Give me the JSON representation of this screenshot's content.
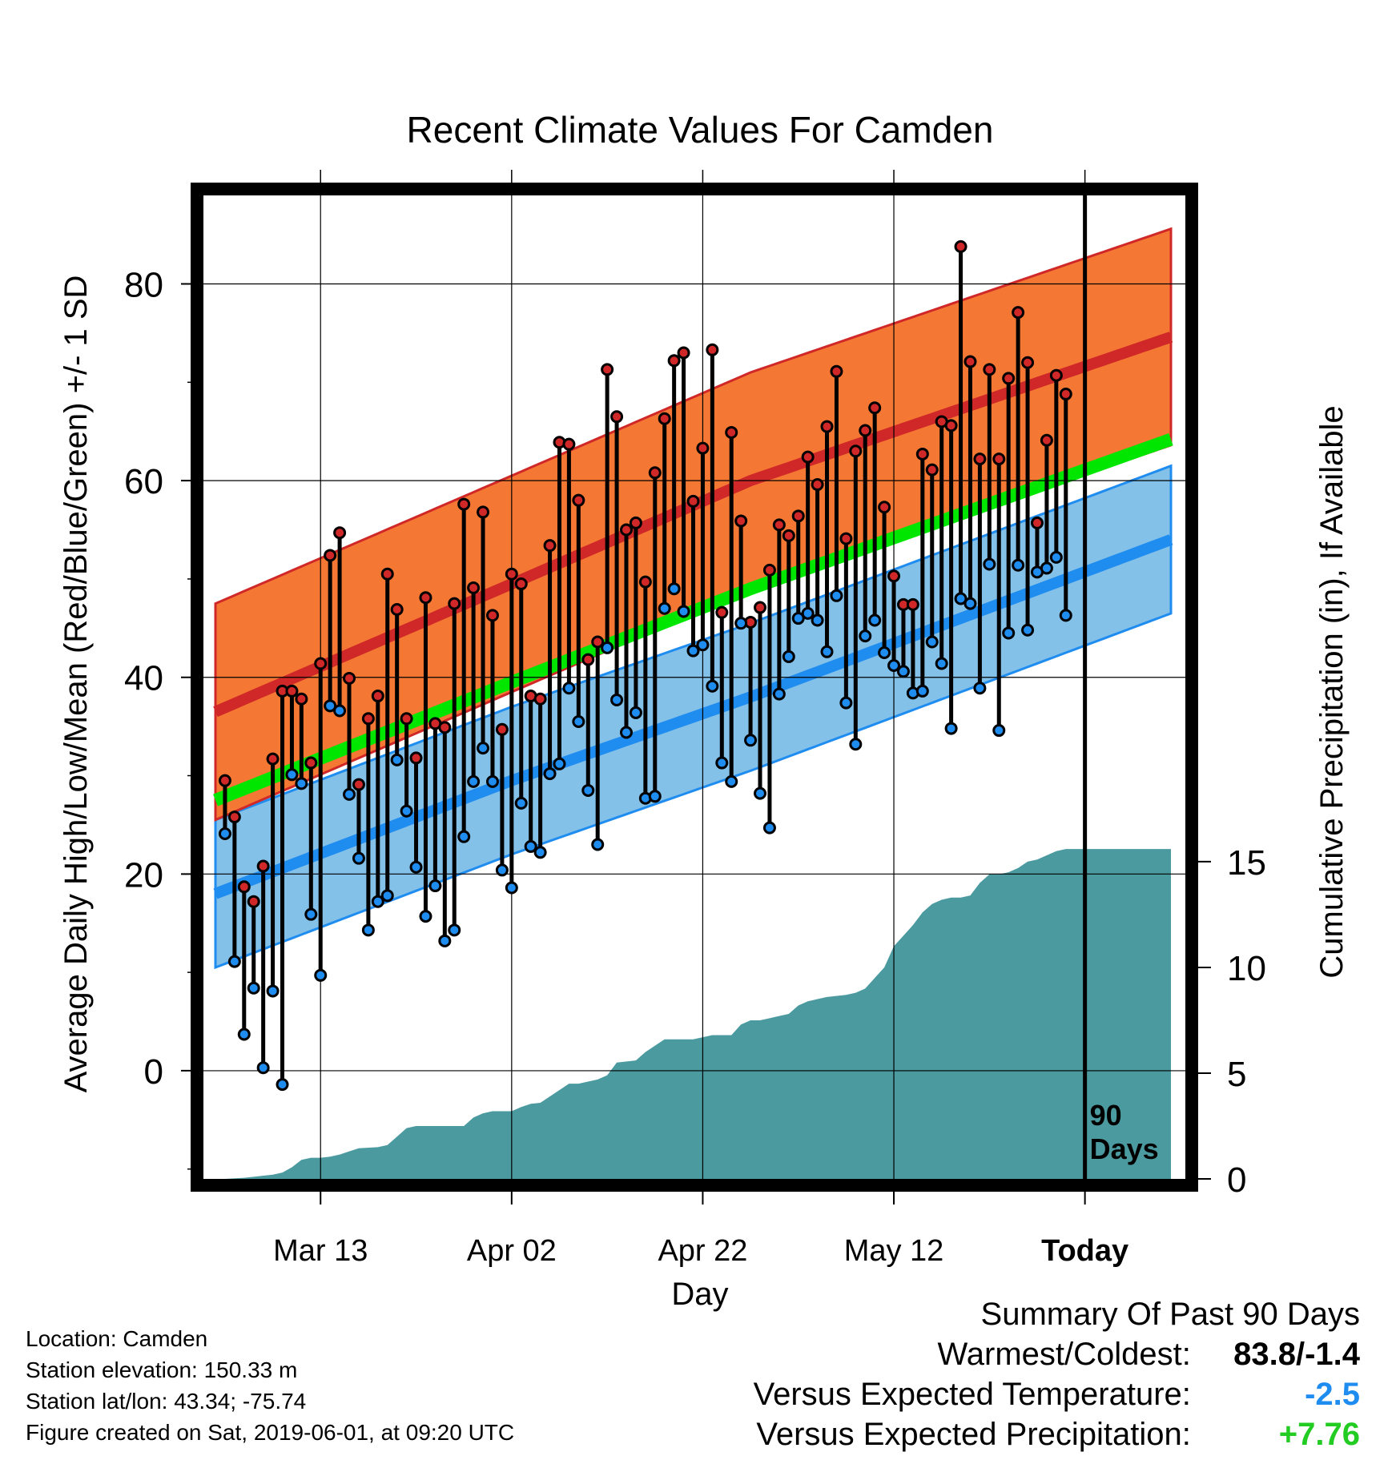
{
  "chart_data": {
    "type": "line",
    "title": "Recent Climate Values For Camden",
    "xlabel": "Day",
    "ylabel_left": "Average Daily High/Low/Mean (Red/Blue/Green) +/- 1 SD",
    "ylabel_right": "Cumulative Precipitation (in), If Available",
    "x_tick_labels": [
      "Mar 13",
      "Apr 02",
      "Apr 22",
      "May 12",
      "Today"
    ],
    "x_tick_days": [
      10,
      30,
      50,
      70,
      90
    ],
    "x_range_days": [
      -1,
      99
    ],
    "y_left_range": [
      -11,
      89
    ],
    "y_left_ticks": [
      0,
      20,
      40,
      60,
      80
    ],
    "y_right_range": [
      0,
      15.3
    ],
    "y_right_ticks": [
      0,
      5,
      10,
      15
    ],
    "today_marker_label": "90 Days",
    "grid": true,
    "colors": {
      "high_band": "#F47833",
      "high_line": "#D02828",
      "low_band": "#84C1E8",
      "low_line": "#1F8CF0",
      "mean_line": "#00E600",
      "precip_fill": "#4A9AA0",
      "frame": "#000000"
    },
    "normal_high": {
      "x": [
        -1,
        30,
        55,
        99
      ],
      "mean": [
        36.5,
        49.5,
        60,
        74.6
      ],
      "sd": 11
    },
    "normal_low": {
      "x": [
        -1,
        30,
        55,
        99
      ],
      "mean": [
        18,
        29.5,
        38,
        54
      ],
      "sd": 7.5
    },
    "normal_mean": {
      "x": [
        -1,
        30,
        55,
        99
      ],
      "values": [
        27.5,
        39.5,
        49,
        64.2
      ]
    },
    "daily_high": [
      29.5,
      25.8,
      18.7,
      17.2,
      20.8,
      31.7,
      38.6,
      38.6,
      37.8,
      31.3,
      41.4,
      52.4,
      54.7,
      39.9,
      29.1,
      35.8,
      38.1,
      50.5,
      46.9,
      35.8,
      31.8,
      48.1,
      35.3,
      34.9,
      47.5,
      57.6,
      49.1,
      56.8,
      46.3,
      34.7,
      50.5,
      49.5,
      38.1,
      37.8,
      53.4,
      63.9,
      63.7,
      58.0,
      41.8,
      43.6,
      71.3,
      66.5,
      55.0,
      55.7,
      49.7,
      60.8,
      66.3,
      72.2,
      73.0,
      57.9,
      63.3,
      73.3,
      46.6,
      64.9,
      55.9,
      45.6,
      47.1,
      50.9,
      55.5,
      54.4,
      56.4,
      62.4,
      59.6,
      65.5,
      71.1,
      54.1,
      63.0,
      65.1,
      67.4,
      57.3,
      50.3,
      47.4,
      47.4,
      62.7,
      61.1,
      66.0,
      65.6,
      83.8,
      72.1,
      62.2,
      71.3,
      62.2,
      70.4,
      77.1,
      72.0,
      55.7,
      64.1,
      70.7,
      68.8
    ],
    "daily_low": [
      24.1,
      11.1,
      3.7,
      8.4,
      0.3,
      8.1,
      -1.4,
      30.1,
      29.2,
      15.9,
      9.7,
      37.1,
      36.6,
      28.1,
      21.6,
      14.3,
      17.2,
      17.8,
      31.6,
      26.4,
      20.7,
      15.7,
      18.8,
      13.2,
      14.3,
      23.8,
      29.4,
      32.8,
      29.4,
      20.4,
      18.6,
      27.2,
      22.8,
      22.2,
      30.2,
      31.2,
      38.9,
      35.5,
      28.5,
      23.0,
      43.0,
      37.7,
      34.4,
      36.4,
      27.7,
      27.9,
      47.0,
      49.0,
      46.7,
      42.7,
      43.3,
      39.1,
      31.3,
      29.4,
      45.5,
      33.6,
      28.2,
      24.7,
      38.3,
      42.1,
      46.0,
      46.5,
      45.8,
      42.6,
      48.3,
      37.4,
      33.2,
      44.2,
      45.8,
      42.5,
      41.2,
      40.6,
      38.4,
      38.6,
      43.6,
      41.4,
      34.8,
      48.0,
      47.5,
      38.9,
      51.5,
      34.6,
      44.5,
      51.4,
      44.8,
      50.7,
      51.1,
      52.2,
      46.3
    ],
    "precip_cumulative": {
      "x": [
        -1,
        0,
        2,
        3,
        4,
        5,
        6,
        7,
        8,
        9,
        10,
        11,
        12,
        13,
        14,
        16,
        17,
        18,
        19,
        20,
        25,
        26,
        27,
        28,
        30,
        31,
        32,
        33,
        35,
        36,
        37,
        38,
        39,
        40,
        41,
        43,
        44,
        46,
        47,
        49,
        50,
        51,
        53,
        54,
        55,
        56,
        57,
        58,
        59,
        60,
        61,
        62,
        63,
        65,
        66,
        67,
        68,
        69,
        70,
        71,
        72,
        73,
        74,
        75,
        76,
        77,
        78,
        79,
        80,
        81,
        82,
        83,
        84,
        85,
        86,
        87,
        88,
        99
      ],
      "values": [
        0,
        0,
        0.05,
        0.1,
        0.15,
        0.2,
        0.3,
        0.55,
        0.9,
        1.0,
        1.0,
        1.05,
        1.15,
        1.3,
        1.45,
        1.5,
        1.6,
        2.0,
        2.4,
        2.5,
        2.5,
        2.9,
        3.1,
        3.2,
        3.2,
        3.4,
        3.55,
        3.6,
        4.2,
        4.5,
        4.5,
        4.6,
        4.7,
        4.9,
        5.5,
        5.6,
        6.0,
        6.6,
        6.6,
        6.6,
        6.7,
        6.8,
        6.8,
        7.3,
        7.5,
        7.5,
        7.6,
        7.7,
        7.8,
        8.2,
        8.4,
        8.5,
        8.6,
        8.7,
        8.8,
        9.0,
        9.5,
        10.0,
        11.0,
        11.5,
        12.0,
        12.6,
        13.0,
        13.2,
        13.3,
        13.3,
        13.4,
        14.0,
        14.4,
        14.4,
        14.5,
        14.7,
        15.0,
        15.1,
        15.3,
        15.5,
        15.6,
        15.6
      ]
    }
  },
  "info": {
    "location": "Location: Camden",
    "elevation": "Station elevation: 150.33 m",
    "latlon": "Station lat/lon: 43.34; -75.74",
    "created": "Figure created on Sat, 2019-06-01, at 09:20 UTC"
  },
  "summary": {
    "heading": "Summary Of Past 90 Days",
    "warmest_coldest_label": "Warmest/Coldest:",
    "warmest_coldest_value": "83.8/-1.4",
    "temp_label": "Versus Expected Temperature:",
    "temp_value": "-2.5",
    "temp_color": "#1F8CF0",
    "precip_label": "Versus Expected Precipitation:",
    "precip_value": "+7.76",
    "precip_color": "#22CC22"
  }
}
